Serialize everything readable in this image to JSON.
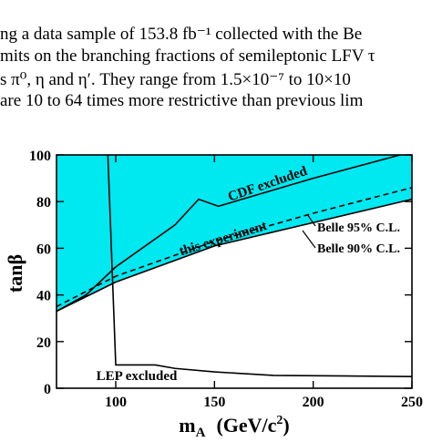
{
  "text_lines": [
    "ng a data sample of 153.8 fb⁻¹ collected with the Be",
    "mits on the branching fractions of semileptonic LFV τ",
    "s π⁰, η and η′. They range from 1.5×10⁻⁷ to 10×10",
    "are 10 to 64 times more restrictive than previous lim"
  ],
  "chart_data": {
    "type": "line",
    "ylabel": "tanβ",
    "xlabel_parts": [
      "m",
      "A",
      "(GeV/c",
      "2",
      ")"
    ],
    "xlim": [
      70,
      250
    ],
    "ylim": [
      0,
      100
    ],
    "xticks": [
      100,
      150,
      200,
      250
    ],
    "yticks": [
      0,
      20,
      40,
      60,
      80,
      100
    ],
    "fill_color": "#00e8f0",
    "series": [
      {
        "name": "Belle 90% C.L.",
        "color": "#000000",
        "dash": false,
        "x": [
          70,
          100,
          150,
          200,
          250
        ],
        "values": [
          33,
          45.5,
          61,
          71,
          81
        ]
      },
      {
        "name": "Belle 95% C.L.",
        "color": "#000000",
        "dash": true,
        "x": [
          70,
          100,
          150,
          200,
          250
        ],
        "values": [
          35,
          48,
          63,
          75,
          86
        ]
      },
      {
        "name": "CDF excluded",
        "color": "#000000",
        "dash": false,
        "x": [
          70,
          85,
          100,
          130,
          142,
          152,
          200,
          244
        ],
        "values": [
          33,
          40,
          52,
          70,
          81,
          78,
          90,
          100
        ]
      },
      {
        "name": "LEP excluded",
        "color": "#000000",
        "dash": false,
        "x": [
          96,
          100,
          120,
          130,
          150,
          180,
          250
        ],
        "values": [
          100,
          10,
          10,
          8.5,
          7,
          5.5,
          5
        ]
      }
    ],
    "annotation": "this experiment"
  }
}
